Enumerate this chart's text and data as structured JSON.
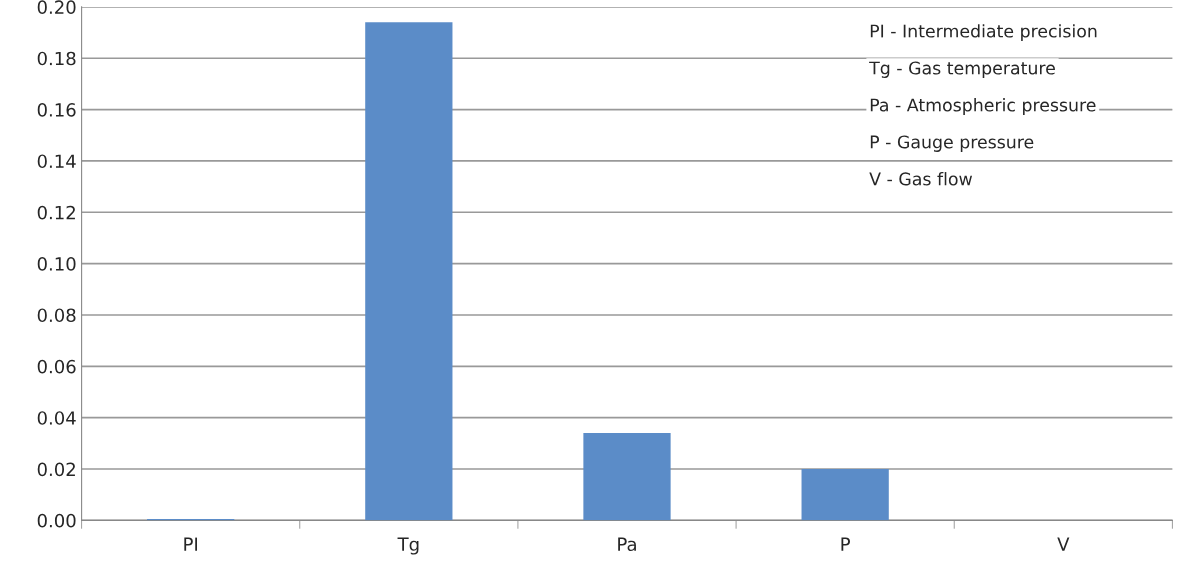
{
  "chart_data": {
    "type": "bar",
    "categories": [
      "PI",
      "Tg",
      "Pa",
      "P",
      "V"
    ],
    "values": [
      0.0005,
      0.194,
      0.034,
      0.02,
      0
    ],
    "color": "#5b8cc8",
    "ylim": [
      0,
      0.2
    ],
    "yticks": [
      {
        "value": 0,
        "label": "0.00"
      },
      {
        "value": 0.02,
        "label": "0.02"
      },
      {
        "value": 0.04,
        "label": "0.04"
      },
      {
        "value": 0.06,
        "label": "0.06"
      },
      {
        "value": 0.08,
        "label": "0.08"
      },
      {
        "value": 0.1,
        "label": "0.10"
      },
      {
        "value": 0.12,
        "label": "0.12"
      },
      {
        "value": 0.14,
        "label": "0.14"
      },
      {
        "value": 0.16,
        "label": "0.16"
      },
      {
        "value": 0.18,
        "label": "0.18"
      },
      {
        "value": 0.2,
        "label": "0.20"
      }
    ],
    "grid": "y",
    "annotations": [
      "PI - Intermediate precision",
      "Tg - Gas temperature",
      "Pa - Atmospheric pressure",
      "P - Gauge pressure",
      "V - Gas flow"
    ]
  }
}
